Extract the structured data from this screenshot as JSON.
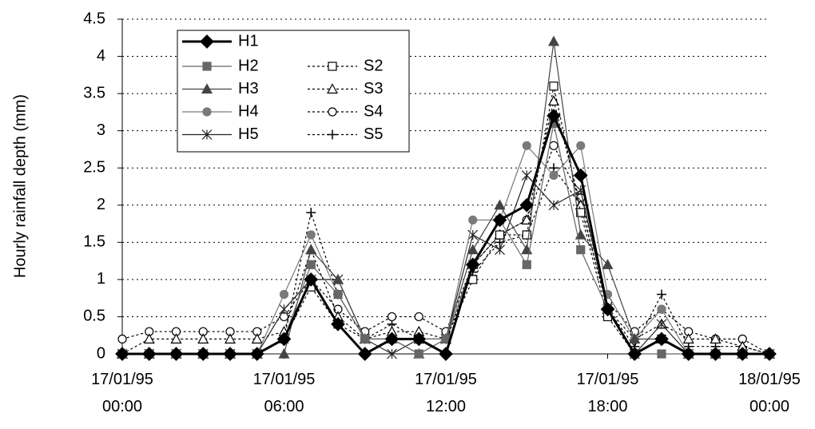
{
  "chart_data": {
    "type": "line",
    "y_label": "Hourly rainfall depth (mm)",
    "categories": [
      "17/01/95 00:00",
      null,
      null,
      null,
      null,
      null,
      "17/01/95 06:00",
      null,
      null,
      null,
      null,
      null,
      "17/01/95 12:00",
      null,
      null,
      null,
      null,
      null,
      "17/01/95 18:00",
      null,
      null,
      null,
      null,
      null,
      "18/01/95 00:00"
    ],
    "ylim": [
      0,
      4.5
    ],
    "yticks": [
      0,
      0.5,
      1,
      1.5,
      2,
      2.5,
      3,
      3.5,
      4,
      4.5
    ],
    "grid": true,
    "legend": "upper left",
    "series": [
      {
        "name": "H1",
        "color": "#000000",
        "marker": "diamond",
        "dashed": false,
        "width": 3,
        "values": [
          0,
          0,
          0,
          0,
          0,
          0,
          0.2,
          1.0,
          0.4,
          0,
          0.2,
          0.2,
          0,
          1.2,
          1.8,
          2.0,
          3.2,
          2.4,
          0.6,
          0,
          0.2,
          0,
          0,
          0,
          0
        ]
      },
      {
        "name": "H2",
        "color": "#666666",
        "marker": "square",
        "dashed": false,
        "width": 1.2,
        "values": [
          0,
          0,
          0,
          0,
          0,
          0,
          0.2,
          1.2,
          0.8,
          0.2,
          0.2,
          0,
          0.2,
          1.2,
          1.8,
          1.2,
          3.1,
          1.4,
          0.6,
          0,
          0,
          0,
          0,
          0,
          0
        ]
      },
      {
        "name": "H3",
        "color": "#444444",
        "marker": "triangle",
        "dashed": false,
        "width": 1.2,
        "values": [
          0,
          0,
          0,
          0,
          0,
          0,
          0,
          1.4,
          1.0,
          0.2,
          0.2,
          0,
          0.2,
          1.4,
          2.0,
          1.4,
          4.2,
          1.6,
          1.2,
          0.2,
          0.2,
          0,
          0,
          0,
          0
        ]
      },
      {
        "name": "H4",
        "color": "#7a7a7a",
        "marker": "circle",
        "dashed": false,
        "width": 1.2,
        "values": [
          0,
          0,
          0,
          0,
          0,
          0,
          0.8,
          1.6,
          0.8,
          0.2,
          0.2,
          0.2,
          0.2,
          1.8,
          1.8,
          2.8,
          2.4,
          2.8,
          0.8,
          0.2,
          0.6,
          0,
          0,
          0,
          0
        ]
      },
      {
        "name": "H5",
        "color": "#222222",
        "marker": "star",
        "dashed": false,
        "width": 1.2,
        "values": [
          0,
          0,
          0,
          0,
          0,
          0,
          0.6,
          1.0,
          1.0,
          0.2,
          0,
          0.2,
          0.2,
          1.6,
          1.4,
          2.4,
          2.0,
          2.2,
          0.6,
          0,
          0.4,
          0,
          0,
          0,
          0
        ]
      },
      {
        "name": "S2",
        "color": "#000000",
        "marker": "open-square",
        "dashed": true,
        "width": 1.2,
        "values": [
          0,
          0,
          0,
          0,
          0,
          0,
          0.2,
          0.9,
          0.4,
          0.2,
          0.2,
          0.2,
          0.2,
          1.0,
          1.6,
          1.6,
          3.6,
          1.9,
          0.5,
          0,
          0.2,
          0,
          0,
          0,
          0
        ]
      },
      {
        "name": "S3",
        "color": "#000000",
        "marker": "open-triangle",
        "dashed": true,
        "width": 1.2,
        "values": [
          0,
          0.2,
          0.2,
          0.2,
          0.2,
          0.2,
          0.3,
          1.4,
          0.5,
          0.2,
          0.3,
          0.3,
          0.2,
          1.2,
          1.6,
          1.8,
          3.4,
          2.0,
          0.6,
          0.2,
          0.4,
          0.2,
          0.2,
          0.1,
          0
        ]
      },
      {
        "name": "S4",
        "color": "#000000",
        "marker": "open-circle",
        "dashed": true,
        "width": 1.2,
        "values": [
          0.2,
          0.3,
          0.3,
          0.3,
          0.3,
          0.3,
          0.5,
          1.0,
          0.6,
          0.3,
          0.5,
          0.5,
          0.3,
          1.2,
          1.6,
          1.8,
          2.8,
          2.1,
          0.7,
          0.3,
          0.6,
          0.3,
          0.2,
          0.2,
          0
        ]
      },
      {
        "name": "S5",
        "color": "#000000",
        "marker": "plus",
        "dashed": true,
        "width": 1.2,
        "values": [
          0,
          0,
          0,
          0,
          0,
          0,
          0.2,
          1.9,
          0.8,
          0.2,
          0.4,
          0.2,
          0.2,
          1.1,
          1.5,
          1.6,
          2.5,
          2.0,
          0.6,
          0.1,
          0.8,
          0.1,
          0.1,
          0.1,
          0
        ]
      }
    ]
  }
}
